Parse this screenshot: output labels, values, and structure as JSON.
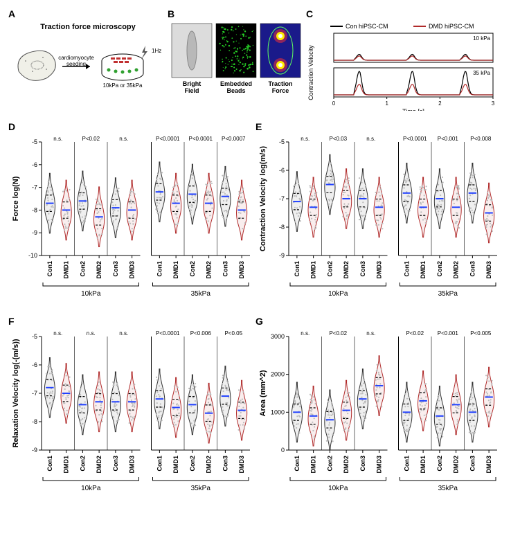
{
  "panelA": {
    "label": "A",
    "title": "Traction force microscopy",
    "arrow_text": "cardiomyocyte\nseeding",
    "hz": "1Hz",
    "substrate": "10kPa or 35kPa"
  },
  "panelB": {
    "label": "B",
    "items": [
      {
        "caption": "Bright\nField",
        "bg": "#dcdcdc"
      },
      {
        "caption": "Embedded\nBeads",
        "bg": "#000000"
      },
      {
        "caption": "Traction\nForce",
        "bg": "#1a1a8a"
      }
    ]
  },
  "panelC": {
    "label": "C",
    "legend": [
      {
        "label": "Con hiPSC-CM",
        "color": "#000000"
      },
      {
        "label": "DMD hiPSC-CM",
        "color": "#b02a2a"
      }
    ],
    "charts": [
      {
        "title": "10 kPa",
        "con_amp": 0.25,
        "dmd_amp": 0.18
      },
      {
        "title": "35 kPa",
        "con_amp": 1.0,
        "dmd_amp": 0.45
      }
    ],
    "xlabel": "Time [s]",
    "ylabel": "Contraction Velocity",
    "xmax": 3
  },
  "violins": {
    "categories": [
      "Con1",
      "DMD1",
      "Con2",
      "DMD2",
      "Con3",
      "DMD3"
    ],
    "groups": [
      "10kPa",
      "35kPa"
    ],
    "colors": {
      "con": "#333333",
      "dmd": "#b02a2a",
      "median": "#2040ff"
    },
    "panels": [
      {
        "id": "D",
        "label": "D",
        "ylabel": "Force log(N)",
        "ylim": [
          -10,
          -5
        ],
        "yticks": [
          -10,
          -9,
          -8,
          -7,
          -6,
          -5
        ],
        "sig10": [
          "n.s.",
          "P<0.02",
          "n.s."
        ],
        "sig35": [
          "P<0.0001",
          "P<0.0001",
          "P<0.0007"
        ],
        "medians10": [
          -7.7,
          -8.0,
          -7.6,
          -8.3,
          -7.9,
          -8.0
        ],
        "medians35": [
          -7.2,
          -7.7,
          -7.3,
          -7.7,
          -7.4,
          -8.0
        ]
      },
      {
        "id": "E",
        "label": "E",
        "ylabel": "Contraction Velocity log(m/s)",
        "ylim": [
          -9,
          -5
        ],
        "yticks": [
          -9,
          -8,
          -7,
          -6,
          -5
        ],
        "sig10": [
          "n.s.",
          "P<0.03",
          "n.s."
        ],
        "sig35": [
          "P<0.0001",
          "P<0.001",
          "P<0.008"
        ],
        "medians10": [
          -7.1,
          -7.3,
          -6.5,
          -7.0,
          -7.0,
          -7.3
        ],
        "medians35": [
          -6.8,
          -7.3,
          -7.0,
          -7.3,
          -6.8,
          -7.5
        ]
      },
      {
        "id": "F",
        "label": "F",
        "ylabel": "Relaxation Velocity log(-(m/s))",
        "ylim": [
          -9,
          -5
        ],
        "yticks": [
          -9,
          -8,
          -7,
          -6,
          -5
        ],
        "sig10": [
          "n.s.",
          "n.s.",
          "n.s."
        ],
        "sig35": [
          "P<0.0001",
          "P<0.006",
          "P<0.05"
        ],
        "medians10": [
          -6.8,
          -7.0,
          -7.4,
          -7.3,
          -7.3,
          -7.3
        ],
        "medians35": [
          -7.2,
          -7.5,
          -7.4,
          -7.7,
          -7.1,
          -7.6
        ]
      },
      {
        "id": "G",
        "label": "G",
        "ylabel": "Area (mm^2)",
        "ylim": [
          0,
          3000
        ],
        "yticks": [
          0,
          1000,
          2000,
          3000
        ],
        "sig10": [
          "n.s.",
          "P<0.02",
          "n.s."
        ],
        "sig35": [
          "P<0.02",
          "P<0.001",
          "P<0.005"
        ],
        "medians10": [
          1000,
          900,
          800,
          1050,
          1350,
          1700
        ],
        "medians35": [
          1000,
          1300,
          900,
          1200,
          1000,
          1400
        ]
      }
    ]
  }
}
